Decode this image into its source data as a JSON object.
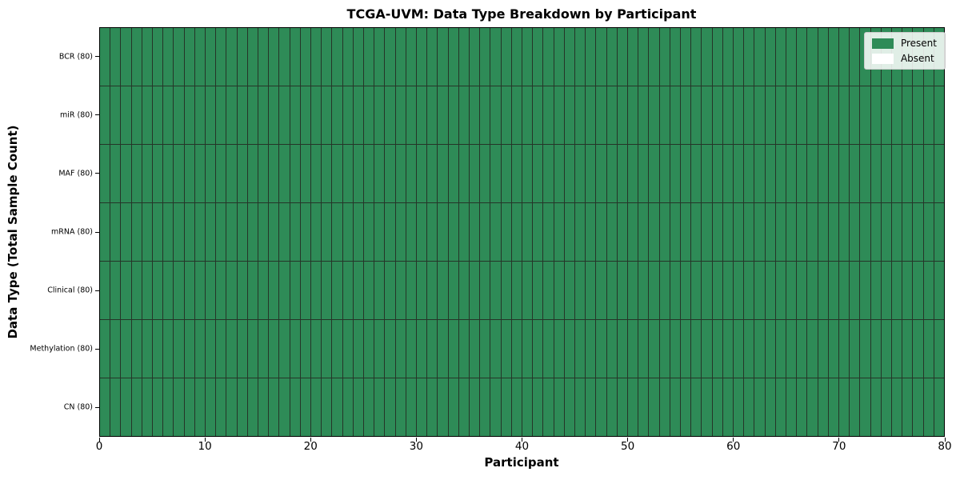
{
  "figure": {
    "title": "TCGA-UVM: Data Type Breakdown by Participant",
    "xlabel": "Participant",
    "ylabel": "Data Type (Total Sample Count)"
  },
  "legend": {
    "position": "upper right",
    "entries": [
      {
        "label": "Present",
        "color": "#2E8B57"
      },
      {
        "label": "Absent",
        "color": "#FFFFFF"
      }
    ]
  },
  "chart_data": {
    "type": "heatmap",
    "title": "TCGA-UVM: Data Type Breakdown by Participant",
    "xlabel": "Participant",
    "ylabel": "Data Type (Total Sample Count)",
    "cohort": "TCGA-UVM",
    "n_participants": 80,
    "xlim": [
      0,
      80
    ],
    "x_ticks": [
      0,
      10,
      20,
      30,
      40,
      50,
      60,
      70,
      80
    ],
    "rows": [
      {
        "label": "BCR (80)",
        "data_type": "BCR",
        "total_samples": 80,
        "present_count": 80,
        "absent_count": 0
      },
      {
        "label": "miR (80)",
        "data_type": "miR",
        "total_samples": 80,
        "present_count": 80,
        "absent_count": 0
      },
      {
        "label": "MAF (80)",
        "data_type": "MAF",
        "total_samples": 80,
        "present_count": 80,
        "absent_count": 0
      },
      {
        "label": "mRNA (80)",
        "data_type": "mRNA",
        "total_samples": 80,
        "present_count": 80,
        "absent_count": 0
      },
      {
        "label": "Clinical (80)",
        "data_type": "Clinical",
        "total_samples": 80,
        "present_count": 80,
        "absent_count": 0
      },
      {
        "label": "Methylation (80)",
        "data_type": "Methylation",
        "total_samples": 80,
        "present_count": 80,
        "absent_count": 0
      },
      {
        "label": "CN (80)",
        "data_type": "CN",
        "total_samples": 80,
        "present_count": 80,
        "absent_count": 0
      }
    ],
    "all_cells_present": true,
    "cell_present_color": "#2E8B57",
    "cell_absent_color": "#FFFFFF",
    "cell_edge_color": "#253528",
    "legend_position": "upper right"
  }
}
